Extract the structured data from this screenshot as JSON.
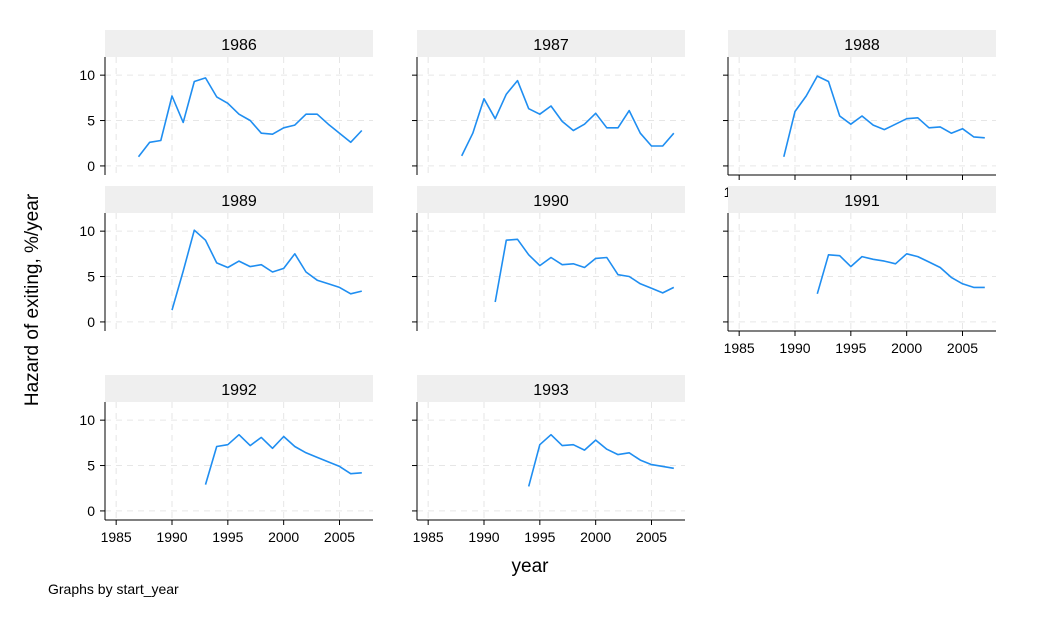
{
  "chart_data": {
    "type": "line",
    "layout": "small-multiples",
    "ylabel": "Hazard of exiting, %/year",
    "xlabel": "year",
    "note": "Graphs by start_year",
    "xlim": [
      1984,
      2008
    ],
    "ylim": [
      -1,
      12
    ],
    "xticks": [
      1985,
      1990,
      1995,
      2000,
      2005
    ],
    "yticks": [
      0,
      5,
      10
    ],
    "grid": true,
    "line_color": "#1f8ef1",
    "grid_color": "#e6e6e6",
    "strip_color": "#efefef",
    "panels": [
      {
        "title": "1986",
        "x": [
          1987,
          1988,
          1989,
          1990,
          1991,
          1992,
          1993,
          1994,
          1995,
          1996,
          1997,
          1998,
          1999,
          2000,
          2001,
          2002,
          2003,
          2004,
          2005,
          2006,
          2007
        ],
        "y": [
          1.0,
          2.6,
          2.8,
          7.7,
          4.8,
          9.3,
          9.7,
          7.6,
          6.9,
          5.7,
          5.0,
          3.6,
          3.5,
          4.2,
          4.5,
          5.7,
          5.7,
          4.6,
          3.6,
          2.6,
          3.9
        ]
      },
      {
        "title": "1987",
        "x": [
          1988,
          1989,
          1990,
          1991,
          1992,
          1993,
          1994,
          1995,
          1996,
          1997,
          1998,
          1999,
          2000,
          2001,
          2002,
          2003,
          2004,
          2005,
          2006,
          2007
        ],
        "y": [
          1.1,
          3.6,
          7.4,
          5.2,
          7.9,
          9.4,
          6.3,
          5.7,
          6.6,
          4.9,
          3.9,
          4.6,
          5.8,
          4.2,
          4.2,
          6.1,
          3.6,
          2.2,
          2.2,
          3.6
        ]
      },
      {
        "title": "1988",
        "x": [
          1989,
          1990,
          1991,
          1992,
          1993,
          1994,
          1995,
          1996,
          1997,
          1998,
          1999,
          2000,
          2001,
          2002,
          2003,
          2004,
          2005,
          2006,
          2007
        ],
        "y": [
          1.0,
          6.0,
          7.7,
          9.9,
          9.3,
          5.5,
          4.6,
          5.5,
          4.5,
          4.0,
          4.6,
          5.2,
          5.3,
          4.2,
          4.3,
          3.6,
          4.1,
          3.2,
          3.1
        ]
      },
      {
        "title": "1989",
        "x": [
          1990,
          1991,
          1992,
          1993,
          1994,
          1995,
          1996,
          1997,
          1998,
          1999,
          2000,
          2001,
          2002,
          2003,
          2004,
          2005,
          2006,
          2007
        ],
        "y": [
          1.3,
          5.6,
          10.1,
          9.0,
          6.5,
          6.0,
          6.7,
          6.1,
          6.3,
          5.5,
          5.9,
          7.5,
          5.5,
          4.6,
          4.2,
          3.8,
          3.1,
          3.4
        ]
      },
      {
        "title": "1990",
        "x": [
          1991,
          1992,
          1993,
          1994,
          1995,
          1996,
          1997,
          1998,
          1999,
          2000,
          2001,
          2002,
          2003,
          2004,
          2005,
          2006,
          2007
        ],
        "y": [
          2.2,
          9.0,
          9.1,
          7.4,
          6.2,
          7.1,
          6.3,
          6.4,
          6.0,
          7.0,
          7.1,
          5.2,
          5.0,
          4.2,
          3.7,
          3.2,
          3.8
        ]
      },
      {
        "title": "1991",
        "x": [
          1992,
          1993,
          1994,
          1995,
          1996,
          1997,
          1998,
          1999,
          2000,
          2001,
          2002,
          2003,
          2004,
          2005,
          2006,
          2007
        ],
        "y": [
          3.1,
          7.4,
          7.3,
          6.1,
          7.2,
          6.9,
          6.7,
          6.4,
          7.5,
          7.2,
          6.6,
          6.0,
          4.9,
          4.2,
          3.8,
          3.8
        ]
      },
      {
        "title": "1992",
        "x": [
          1993,
          1994,
          1995,
          1996,
          1997,
          1998,
          1999,
          2000,
          2001,
          2002,
          2003,
          2004,
          2005,
          2006,
          2007
        ],
        "y": [
          2.9,
          7.1,
          7.3,
          8.4,
          7.2,
          8.1,
          6.9,
          8.2,
          7.1,
          6.4,
          5.9,
          5.4,
          4.9,
          4.1,
          4.2
        ]
      },
      {
        "title": "1993",
        "x": [
          1994,
          1995,
          1996,
          1997,
          1998,
          1999,
          2000,
          2001,
          2002,
          2003,
          2004,
          2005,
          2006,
          2007
        ],
        "y": [
          2.7,
          7.3,
          8.4,
          7.2,
          7.3,
          6.7,
          7.8,
          6.8,
          6.2,
          6.4,
          5.6,
          5.1,
          4.9,
          4.7
        ]
      }
    ]
  }
}
